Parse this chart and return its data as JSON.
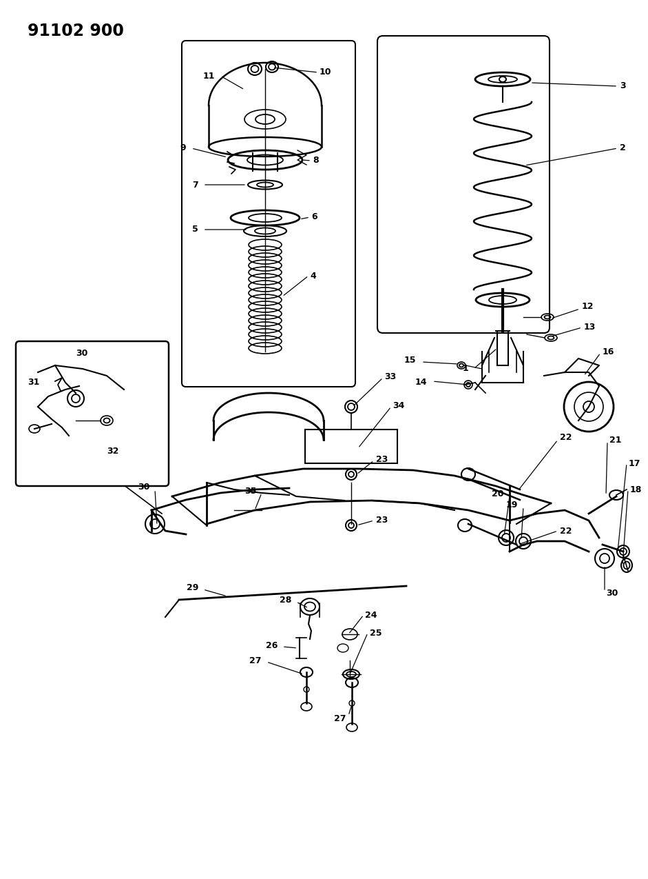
{
  "title": "91102 900",
  "bg_color": "#ffffff",
  "line_color": "#000000",
  "fig_width": 9.41,
  "fig_height": 12.75,
  "dpi": 100
}
